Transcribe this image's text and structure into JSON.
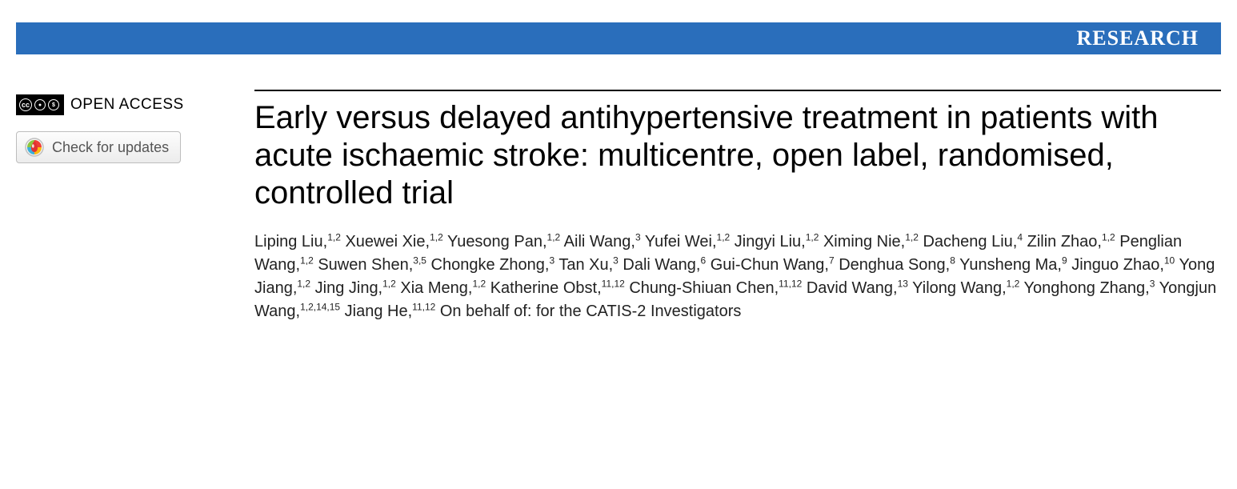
{
  "banner": {
    "label": "RESEARCH",
    "bg": "#2a6ebb",
    "fg": "#ffffff"
  },
  "sidebar": {
    "open_access_label": "OPEN ACCESS",
    "updates_label": "Check for updates"
  },
  "article": {
    "title": "Early versus delayed antihypertensive treatment in patients with acute ischaemic stroke: multicentre, open label, randomised, controlled trial",
    "authors": [
      {
        "name": "Liping Liu",
        "aff": "1,2"
      },
      {
        "name": "Xuewei Xie",
        "aff": "1,2"
      },
      {
        "name": "Yuesong Pan",
        "aff": "1,2"
      },
      {
        "name": "Aili Wang",
        "aff": "3"
      },
      {
        "name": "Yufei Wei",
        "aff": "1,2"
      },
      {
        "name": "Jingyi Liu",
        "aff": "1,2"
      },
      {
        "name": "Ximing Nie",
        "aff": "1,2"
      },
      {
        "name": "Dacheng Liu",
        "aff": "4"
      },
      {
        "name": "Zilin Zhao",
        "aff": "1,2"
      },
      {
        "name": "Penglian Wang",
        "aff": "1,2"
      },
      {
        "name": "Suwen Shen",
        "aff": "3,5"
      },
      {
        "name": "Chongke Zhong",
        "aff": "3"
      },
      {
        "name": "Tan Xu",
        "aff": "3"
      },
      {
        "name": "Dali Wang",
        "aff": "6"
      },
      {
        "name": "Gui-Chun Wang",
        "aff": "7"
      },
      {
        "name": "Denghua Song",
        "aff": "8"
      },
      {
        "name": "Yunsheng Ma",
        "aff": "9"
      },
      {
        "name": "Jinguo Zhao",
        "aff": "10"
      },
      {
        "name": "Yong Jiang",
        "aff": "1,2"
      },
      {
        "name": "Jing Jing",
        "aff": "1,2"
      },
      {
        "name": "Xia Meng",
        "aff": "1,2"
      },
      {
        "name": "Katherine Obst",
        "aff": "11,12"
      },
      {
        "name": "Chung-Shiuan Chen",
        "aff": "11,12"
      },
      {
        "name": "David Wang",
        "aff": "13"
      },
      {
        "name": "Yilong Wang",
        "aff": "1,2"
      },
      {
        "name": "Yonghong Zhang",
        "aff": "3"
      },
      {
        "name": "Yongjun Wang",
        "aff": "1,2,14,15"
      },
      {
        "name": "Jiang He",
        "aff": "11,12"
      }
    ],
    "on_behalf": "On behalf of: for the CATIS-2 Investigators"
  }
}
